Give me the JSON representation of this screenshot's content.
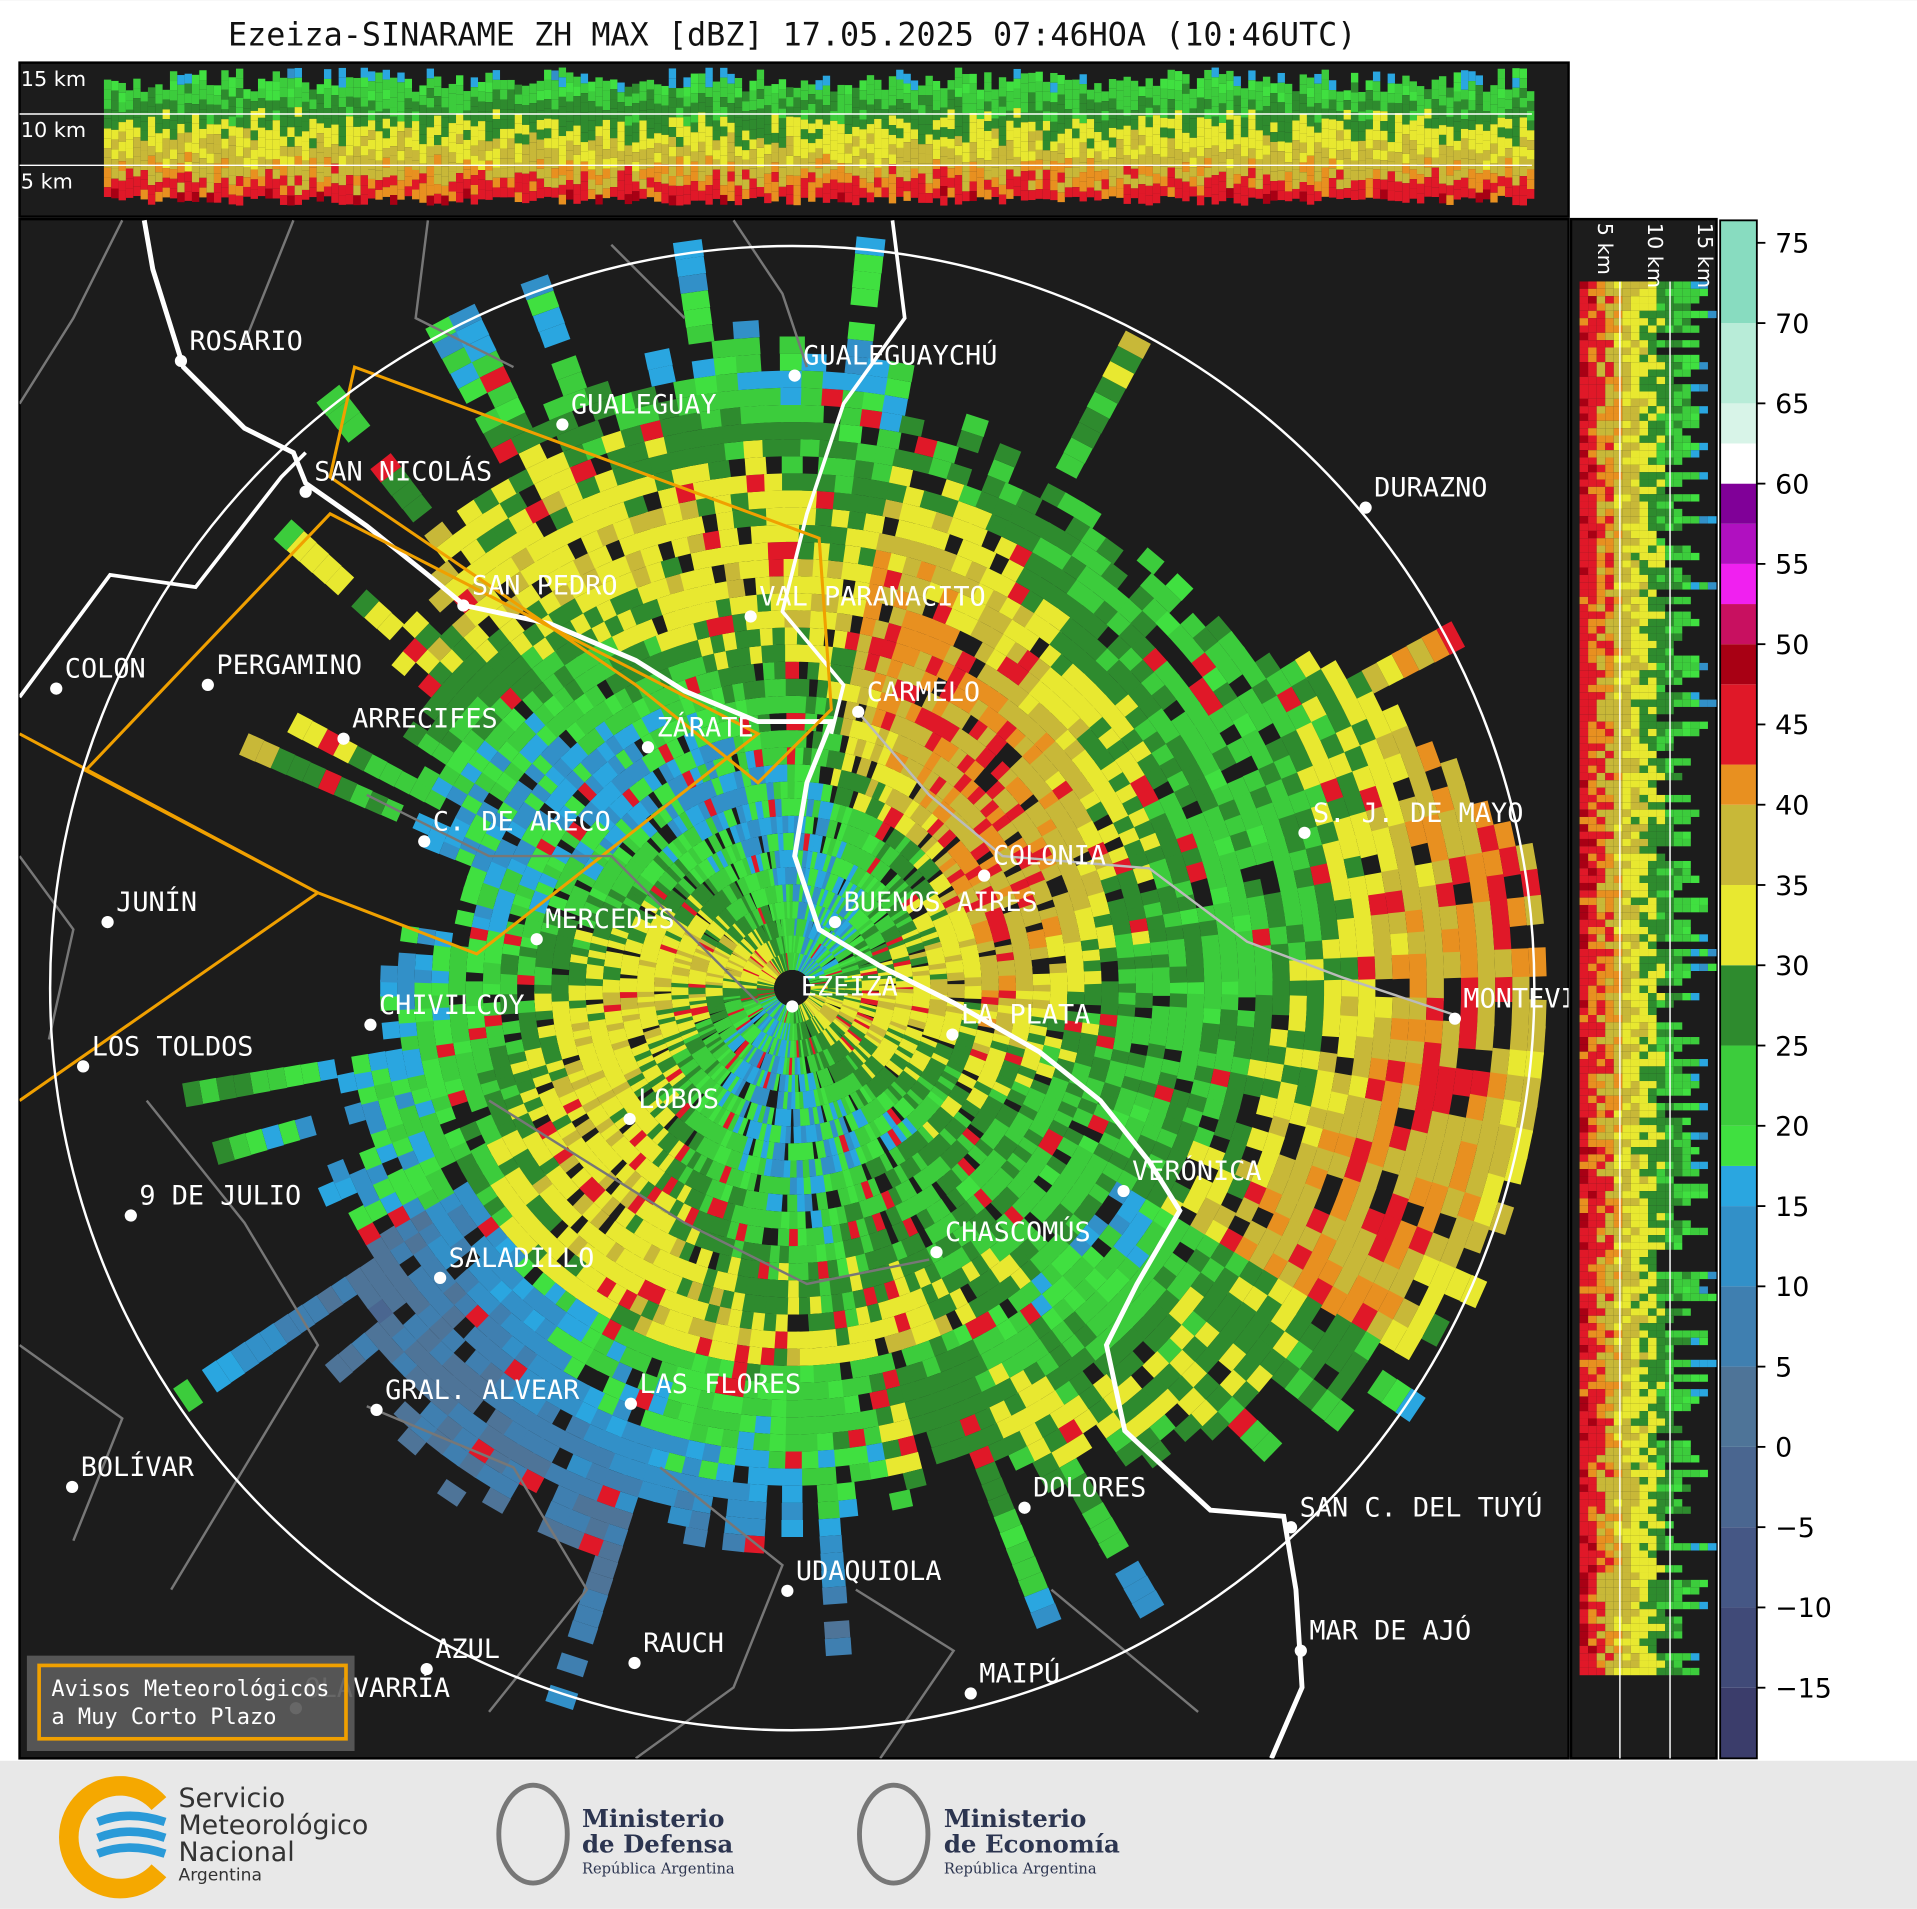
{
  "title": "Ezeiza-SINARAME ZH MAX [dBZ] 17.05.2025 07:46HOA (10:46UTC)",
  "height_labels_top": [
    "15 km",
    "10 km",
    "5 km"
  ],
  "height_labels_side": [
    "5 km",
    "10 km",
    "15 km"
  ],
  "cities": [
    "ROSARIO",
    "GUALEGUAYCHÚ",
    "GUALEGUAY",
    "SAN NICOLÁS",
    "DURAZNO",
    "SAN PEDRO",
    "VAL PARANACITO",
    "COLON",
    "PERGAMINO",
    "CARMELO",
    "ARRECIFES",
    "ZÁRATE",
    "S. J. DE MAYO",
    "C. DE ARECO",
    "COLONIA",
    "BUENOS AIRES",
    "JUNÍN",
    "MERCEDES",
    "EZEIZA",
    "MONTEVIDEO",
    "LA PLATA",
    "CHIVILCOY",
    "LOS TOLDOS",
    "LOBOS",
    "VERÓNICA",
    "9 DE JULIO",
    "CHASCOMÚS",
    "SALADILLO",
    "GRAL. ALVEAR",
    "LAS FLORES",
    "BOLÍVAR",
    "DOLORES",
    "SAN C. DEL TUYÚ",
    "UDAQUIOLA",
    "MAR DE AJÓ",
    "AZUL",
    "RAUCH",
    "OLAVARRÍA",
    "MAIPÚ"
  ],
  "colorbar": {
    "range": [
      -19.4,
      76.4
    ],
    "ticks": [
      75,
      70,
      65,
      60,
      55,
      50,
      45,
      40,
      35,
      30,
      25,
      20,
      15,
      10,
      5,
      0,
      {
        "value": -5,
        "label": "−5"
      },
      {
        "value": -10,
        "label": "−10"
      },
      {
        "value": -15,
        "label": "−15"
      }
    ],
    "edges": [
      -20,
      -15,
      -10,
      -5,
      0,
      5,
      10,
      15,
      17.5,
      20,
      25,
      30,
      35,
      40,
      42.5,
      47.5,
      50,
      52.5,
      55,
      57.5,
      60,
      62.5,
      65,
      70,
      80
    ],
    "colors": [
      "#3b3d6b",
      "#404a78",
      "#455785",
      "#4a6690",
      "#4e7498",
      "#3f7fb0",
      "#3290c8",
      "#2aa6e0",
      "#40e040",
      "#3ccc3c",
      "#2e8b2e",
      "#e8e830",
      "#c8b838",
      "#e89020",
      "#e01828",
      "#a80014",
      "#c81060",
      "#f020f0",
      "#b010c0",
      "#800098",
      "#ffffff",
      "#d8f4e8",
      "#b8ecd8",
      "#88dcc0"
    ]
  },
  "legend_box": {
    "lines": [
      "Avisos Meteorológicos",
      "a Muy Corto Plazo"
    ]
  },
  "footer": {
    "smn": [
      "Servicio",
      "Meteorológico",
      "Nacional",
      "Argentina"
    ],
    "defensa": [
      "Ministerio",
      "de Defensa",
      "República Argentina"
    ],
    "economia": [
      "Ministerio",
      "de Economía",
      "República Argentina"
    ]
  }
}
